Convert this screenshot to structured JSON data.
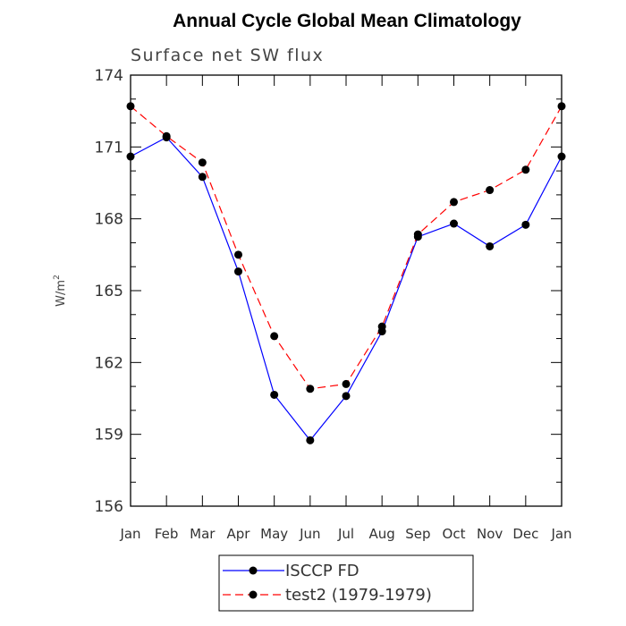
{
  "chart_data": {
    "type": "line",
    "title": "Annual Cycle Global Mean Climatology",
    "subtitle": "Surface net SW flux",
    "ylabel": "W/m",
    "ylabel_sup": "2",
    "ylim": [
      156,
      174
    ],
    "yticks": [
      "156",
      "159",
      "162",
      "165",
      "168",
      "171",
      "174"
    ],
    "categories": [
      "Jan",
      "Feb",
      "Mar",
      "Apr",
      "May",
      "Jun",
      "Jul",
      "Aug",
      "Sep",
      "Oct",
      "Nov",
      "Dec",
      "Jan"
    ],
    "grid": false,
    "legend_position": "bottom",
    "series": [
      {
        "name": "ISCCP FD",
        "color": "#0000ff",
        "dash": "solid",
        "marker": "circle",
        "values": [
          170.6,
          171.4,
          169.75,
          165.8,
          160.65,
          158.75,
          160.6,
          163.3,
          167.25,
          167.8,
          166.85,
          167.75,
          170.6
        ]
      },
      {
        "name": "test2 (1979-1979)",
        "color": "#ff0000",
        "dash": "dashed",
        "marker": "circle",
        "values": [
          172.7,
          171.45,
          170.35,
          166.5,
          163.1,
          160.9,
          161.1,
          163.5,
          167.35,
          168.7,
          169.2,
          170.05,
          172.7
        ]
      }
    ]
  }
}
